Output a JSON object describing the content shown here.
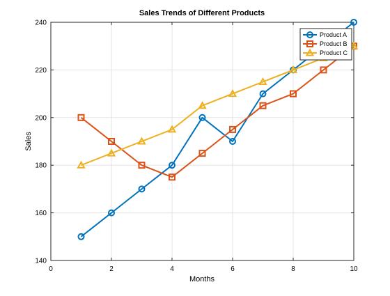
{
  "chart_data": {
    "type": "line",
    "title": "Sales Trends of Different Products",
    "xlabel": "Months",
    "ylabel": "Sales",
    "xlim": [
      0,
      10
    ],
    "ylim": [
      140,
      240
    ],
    "xticks": [
      0,
      2,
      4,
      6,
      8,
      10
    ],
    "yticks": [
      140,
      160,
      180,
      200,
      220,
      240
    ],
    "grid": true,
    "legend_position": "top-right",
    "x": [
      1,
      2,
      3,
      4,
      5,
      6,
      7,
      8,
      9,
      10
    ],
    "series": [
      {
        "name": "Product A",
        "values": [
          150,
          160,
          170,
          180,
          200,
          190,
          210,
          220,
          230,
          240
        ],
        "color": "#0072BD",
        "marker": "circle"
      },
      {
        "name": "Product B",
        "values": [
          200,
          190,
          180,
          175,
          185,
          195,
          205,
          210,
          220,
          230
        ],
        "color": "#D95319",
        "marker": "square"
      },
      {
        "name": "Product C",
        "values": [
          180,
          185,
          190,
          195,
          205,
          210,
          215,
          220,
          225,
          230
        ],
        "color": "#EDB120",
        "marker": "triangle"
      }
    ]
  }
}
